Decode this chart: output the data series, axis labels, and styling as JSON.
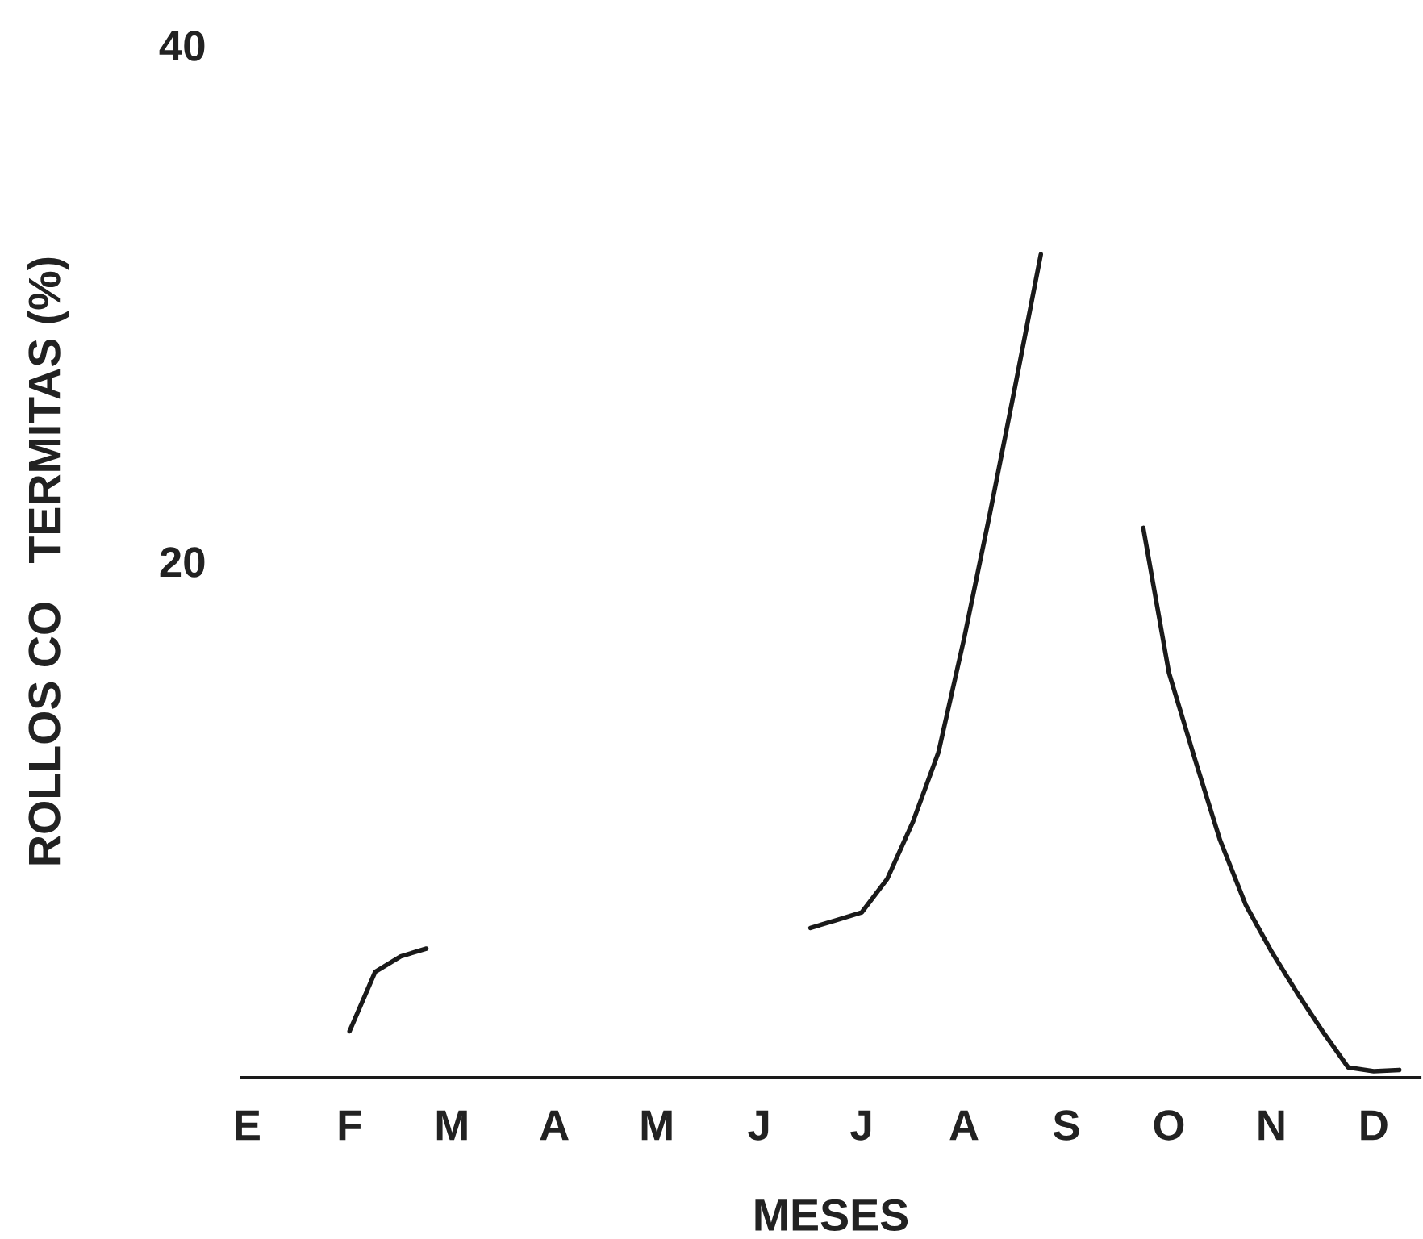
{
  "chart_data": {
    "type": "line",
    "xlabel": "MESES",
    "ylabel": "ROLLOS CO   TERMITAS (%)",
    "categories": [
      "E",
      null,
      null,
      null,
      "F",
      null,
      null,
      null,
      "M",
      null,
      null,
      null,
      "A",
      null,
      null,
      null,
      "M",
      null,
      null,
      null,
      "J",
      null,
      null,
      null,
      "J",
      null,
      null,
      null,
      "A",
      null,
      null,
      null,
      "S",
      null,
      null,
      null,
      "O",
      null,
      null,
      null,
      "N",
      null,
      null,
      null,
      "D",
      null
    ],
    "series": [
      {
        "color": "#1a1a1a",
        "values": [
          null,
          null,
          null,
          null,
          1.8,
          4.1,
          4.7,
          5.0,
          null,
          null,
          null,
          null,
          null,
          null,
          null,
          null,
          null,
          null,
          null,
          null,
          null,
          null,
          5.8,
          6.1,
          6.4,
          7.7,
          9.9,
          12.6,
          17.0,
          21.8,
          26.8,
          31.9,
          null,
          null,
          null,
          21.3,
          15.7,
          12.4,
          9.2,
          6.7,
          4.9,
          3.3,
          1.8,
          0.4,
          0.25,
          0.3
        ]
      }
    ],
    "ylim": [
      0,
      40
    ],
    "yticks": [
      20,
      40
    ],
    "grid": false,
    "marker": "none",
    "line_style": "solid"
  }
}
